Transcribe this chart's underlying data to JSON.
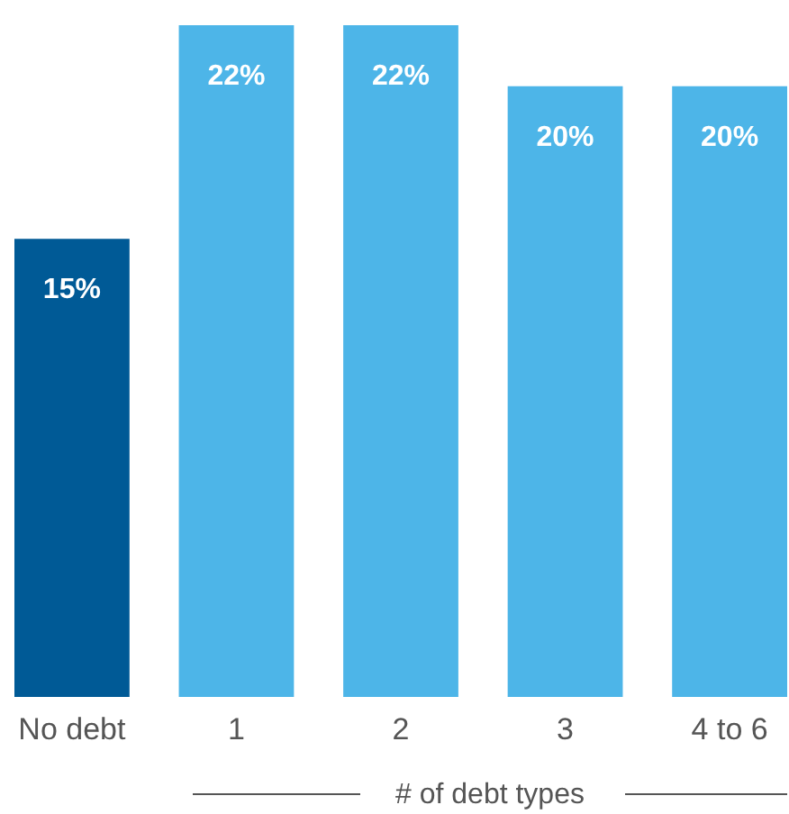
{
  "chart_data": {
    "type": "bar",
    "categories": [
      "No debt",
      "1",
      "2",
      "3",
      "4 to 6"
    ],
    "values": [
      15,
      22,
      22,
      20,
      20
    ],
    "colors": [
      "#005a96",
      "#4db5e8",
      "#4db5e8",
      "#4db5e8",
      "#4db5e8"
    ],
    "value_labels": [
      "15%",
      "22%",
      "22%",
      "20%",
      "20%"
    ],
    "xlabel": "# of debt types"
  }
}
